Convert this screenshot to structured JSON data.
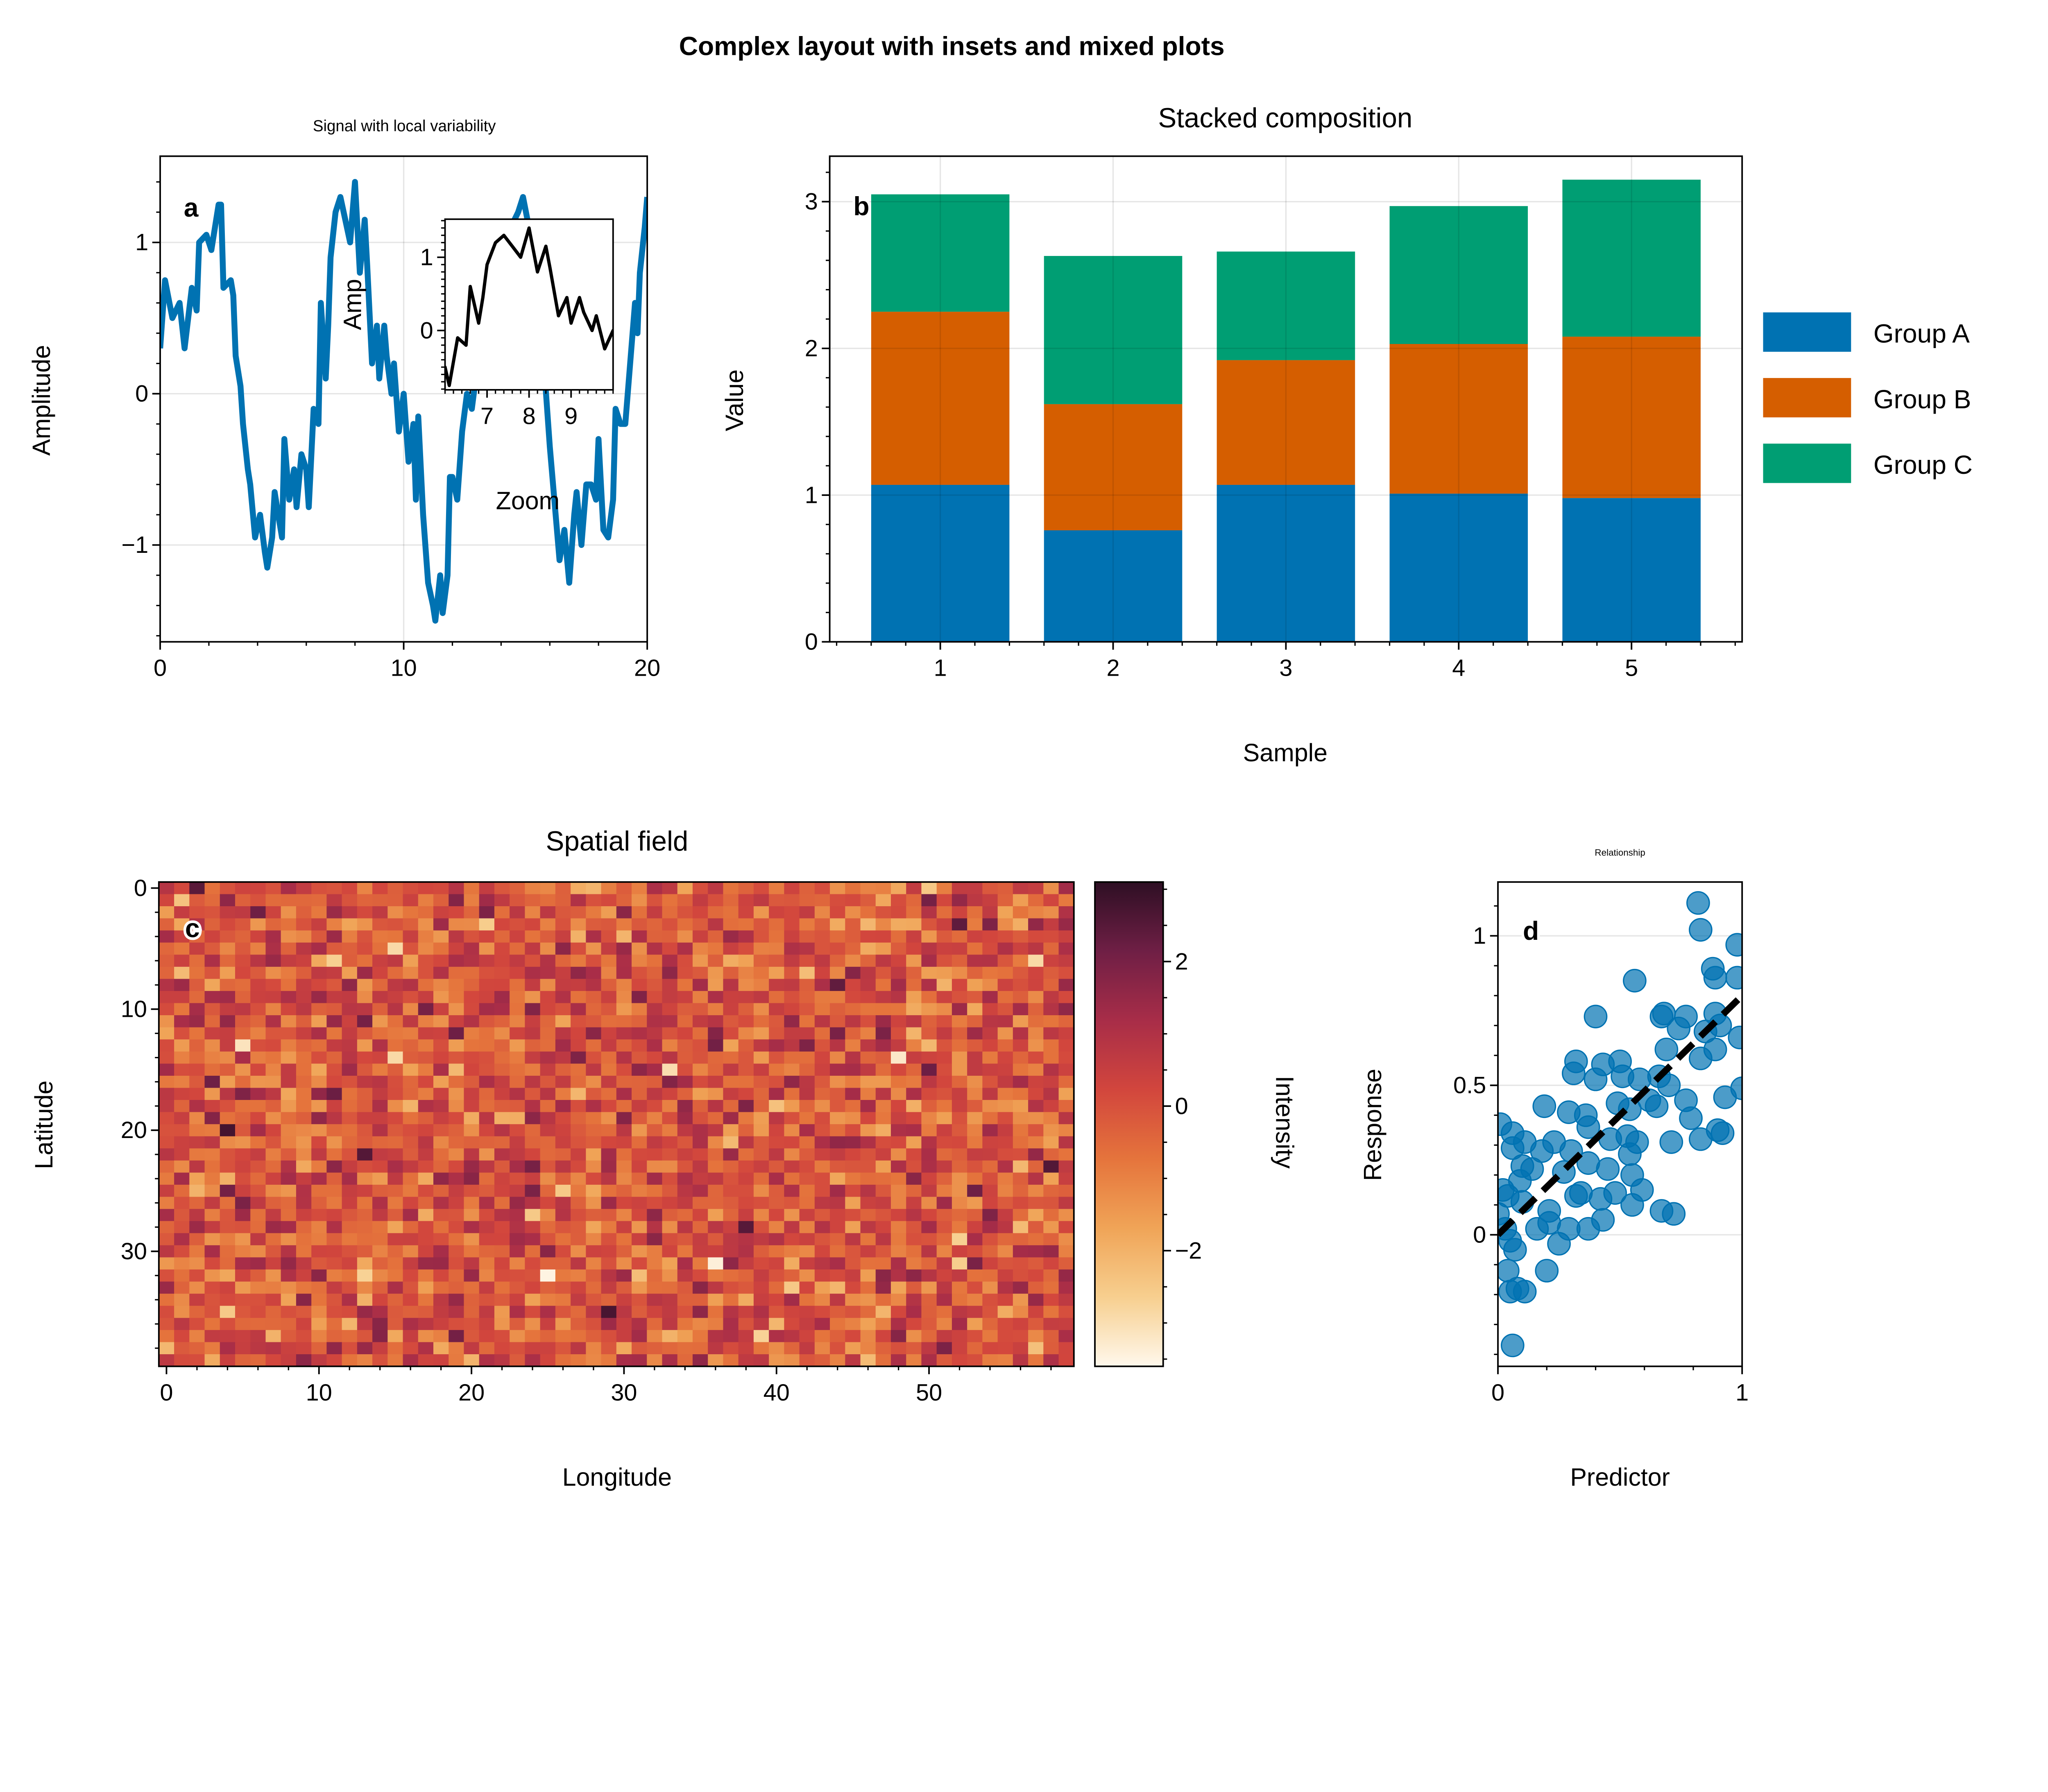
{
  "figure_title": "Complex layout with insets and mixed plots",
  "chart_data": [
    {
      "panel": "a",
      "type": "line",
      "title": "Signal with local variability",
      "xlabel": "",
      "ylabel": "Amplitude",
      "xlim": [
        0,
        20
      ],
      "ylim": [
        -1.64,
        1.57
      ],
      "xticks": [
        0,
        10,
        20
      ],
      "yticks": [
        -1,
        0,
        1
      ],
      "grid": true,
      "color": "#0072b2",
      "x": [
        0,
        0.2,
        0.5,
        0.8,
        1.0,
        1.3,
        1.5,
        1.6,
        1.9,
        2.1,
        2.4,
        2.5,
        2.6,
        2.9,
        3.0,
        3.1,
        3.3,
        3.4,
        3.6,
        3.7,
        3.9,
        4.1,
        4.3,
        4.4,
        4.6,
        4.7,
        4.9,
        5.0,
        5.1,
        5.3,
        5.5,
        5.6,
        5.8,
        6.0,
        6.1,
        6.3,
        6.5,
        6.6,
        6.8,
        6.9,
        7.0,
        7.2,
        7.4,
        7.6,
        7.8,
        8.0,
        8.2,
        8.4,
        8.5,
        8.7,
        8.9,
        9.0,
        9.2,
        9.3,
        9.5,
        9.6,
        9.8,
        10.0,
        10.2,
        10.4,
        10.5,
        10.6,
        10.8,
        11.0,
        11.2,
        11.3,
        11.5,
        11.6,
        11.8,
        11.9,
        12.0,
        12.2,
        12.4,
        12.6,
        12.8,
        13.0,
        13.2,
        13.5,
        14.0,
        14.4,
        14.7,
        14.9,
        15.2,
        15.5,
        15.8,
        16.0,
        16.4,
        16.6,
        16.8,
        17.0,
        17.1,
        17.3,
        17.5,
        17.7,
        17.9,
        18.0,
        18.2,
        18.4,
        18.6,
        18.7,
        18.9,
        19.1,
        19.3,
        19.5,
        19.6,
        19.7,
        19.9,
        20.0
      ],
      "y": [
        0.3,
        0.75,
        0.5,
        0.6,
        0.3,
        0.7,
        0.55,
        1.0,
        1.05,
        0.95,
        1.25,
        1.25,
        0.7,
        0.75,
        0.65,
        0.25,
        0.05,
        -0.2,
        -0.5,
        -0.6,
        -0.95,
        -0.8,
        -1.05,
        -1.15,
        -0.95,
        -0.65,
        -0.85,
        -0.95,
        -0.3,
        -0.7,
        -0.5,
        -0.75,
        -0.4,
        -0.5,
        -0.75,
        -0.1,
        -0.2,
        0.6,
        0.1,
        0.45,
        0.9,
        1.2,
        1.3,
        1.15,
        1.0,
        1.4,
        0.8,
        1.15,
        0.85,
        0.2,
        0.45,
        0.1,
        0.45,
        0.25,
        0.0,
        0.2,
        -0.25,
        0.0,
        -0.45,
        -0.2,
        -0.7,
        -0.15,
        -0.8,
        -1.25,
        -1.4,
        -1.5,
        -1.2,
        -1.45,
        -1.2,
        -0.55,
        -0.55,
        -0.7,
        -0.25,
        0.0,
        -0.1,
        0.15,
        0.5,
        0.7,
        0.9,
        1.1,
        1.2,
        1.3,
        1.05,
        0.6,
        0.1,
        -0.35,
        -1.1,
        -0.9,
        -1.25,
        -0.8,
        -0.65,
        -1.0,
        -0.6,
        -0.6,
        -0.7,
        -0.3,
        -0.9,
        -0.95,
        -0.7,
        -0.1,
        -0.2,
        -0.2,
        0.2,
        0.6,
        0.4,
        0.8,
        1.1,
        1.3
      ],
      "panel_label": "a",
      "inset": {
        "xlabel": "Zoom",
        "ylabel": "Amp",
        "xlim": [
          6,
          10
        ],
        "ylim": [
          -0.81,
          1.52
        ],
        "xticks": [
          7,
          8,
          9
        ],
        "yticks": [
          0,
          1
        ],
        "color": "#000000"
      }
    },
    {
      "panel": "b",
      "type": "bar",
      "stacked": true,
      "title": "Stacked composition",
      "xlabel": "Sample",
      "ylabel": "Value",
      "categories": [
        1,
        2,
        3,
        4,
        5
      ],
      "xlim": [
        0.36,
        5.64
      ],
      "ylim": [
        0,
        3.31
      ],
      "yticks": [
        0,
        1,
        2,
        3
      ],
      "grid": true,
      "legend": "right",
      "panel_label": "b",
      "series": [
        {
          "name": "Group A",
          "color": "#0072b2",
          "values": [
            1.07,
            0.76,
            1.07,
            1.01,
            0.98
          ]
        },
        {
          "name": "Group B",
          "color": "#d55e00",
          "values": [
            1.18,
            0.86,
            0.85,
            1.02,
            1.1
          ]
        },
        {
          "name": "Group C",
          "color": "#009e73",
          "values": [
            0.8,
            1.01,
            0.74,
            0.94,
            1.07
          ]
        }
      ]
    },
    {
      "panel": "c",
      "type": "heatmap",
      "title": "Spatial field",
      "xlabel": "Longitude",
      "ylabel": "Latitude",
      "shape": [
        40,
        60
      ],
      "xticks": [
        0,
        10,
        20,
        30,
        40,
        50
      ],
      "yticks": [
        0,
        10,
        20,
        30
      ],
      "panel_label": "c",
      "extreme_low_cells": [
        {
          "row": 32,
          "col": 25,
          "value": -3.5
        },
        {
          "row": 31,
          "col": 36,
          "value": -3.4
        }
      ],
      "colorbar": {
        "label": "Intensity",
        "range": [
          -3.6,
          3.1
        ],
        "ticks": [
          -2,
          0,
          2
        ],
        "colors": [
          "#fff8ec",
          "#f7cf8f",
          "#f0a457",
          "#e5743c",
          "#d2463d",
          "#a82d48",
          "#6f1f45",
          "#2e0f24"
        ]
      }
    },
    {
      "panel": "d",
      "type": "scatter",
      "title": "Relationship",
      "xlabel": "Predictor",
      "ylabel": "Response",
      "xlim": [
        0,
        1
      ],
      "ylim": [
        -0.44,
        1.18
      ],
      "xticks": [
        0,
        1
      ],
      "yticks": [
        0,
        0.5,
        1
      ],
      "yticklabels": [
        "0",
        "0.5",
        "1"
      ],
      "grid": true,
      "color": "#0072b2",
      "panel_label": "d",
      "fit_line": {
        "slope": 0.8,
        "intercept": 0,
        "style": "dashed",
        "color": "#000000"
      },
      "points": [
        [
          0.82,
          1.11
        ],
        [
          0.83,
          1.02
        ],
        [
          0.98,
          0.97
        ],
        [
          0.56,
          0.85
        ],
        [
          0.88,
          0.89
        ],
        [
          0.89,
          0.86
        ],
        [
          0.98,
          0.86
        ],
        [
          0.4,
          0.73
        ],
        [
          0.67,
          0.73
        ],
        [
          0.68,
          0.74
        ],
        [
          0.77,
          0.73
        ],
        [
          0.89,
          0.74
        ],
        [
          0.74,
          0.69
        ],
        [
          0.91,
          0.7
        ],
        [
          0.99,
          0.66
        ],
        [
          0.85,
          0.68
        ],
        [
          0.69,
          0.62
        ],
        [
          0.83,
          0.59
        ],
        [
          0.89,
          0.62
        ],
        [
          0.32,
          0.58
        ],
        [
          0.43,
          0.57
        ],
        [
          0.5,
          0.58
        ],
        [
          0.31,
          0.54
        ],
        [
          0.4,
          0.52
        ],
        [
          0.51,
          0.53
        ],
        [
          0.58,
          0.52
        ],
        [
          0.66,
          0.53
        ],
        [
          0.7,
          0.5
        ],
        [
          1.0,
          0.49
        ],
        [
          0.93,
          0.46
        ],
        [
          0.49,
          0.44
        ],
        [
          0.62,
          0.45
        ],
        [
          0.77,
          0.45
        ],
        [
          0.19,
          0.43
        ],
        [
          0.29,
          0.41
        ],
        [
          0.36,
          0.4
        ],
        [
          0.54,
          0.42
        ],
        [
          0.65,
          0.43
        ],
        [
          0.79,
          0.39
        ],
        [
          0.01,
          0.37
        ],
        [
          0.37,
          0.36
        ],
        [
          0.9,
          0.35
        ],
        [
          0.92,
          0.34
        ],
        [
          0.06,
          0.34
        ],
        [
          0.11,
          0.31
        ],
        [
          0.23,
          0.31
        ],
        [
          0.53,
          0.33
        ],
        [
          0.57,
          0.31
        ],
        [
          0.71,
          0.31
        ],
        [
          0.83,
          0.32
        ],
        [
          0.06,
          0.29
        ],
        [
          0.18,
          0.28
        ],
        [
          0.3,
          0.28
        ],
        [
          0.46,
          0.32
        ],
        [
          0.54,
          0.27
        ],
        [
          0.1,
          0.23
        ],
        [
          0.14,
          0.22
        ],
        [
          0.27,
          0.21
        ],
        [
          0.37,
          0.24
        ],
        [
          0.45,
          0.22
        ],
        [
          0.09,
          0.18
        ],
        [
          0.55,
          0.2
        ],
        [
          0.04,
          0.13
        ],
        [
          0.1,
          0.11
        ],
        [
          0.32,
          0.13
        ],
        [
          0.34,
          0.14
        ],
        [
          0.42,
          0.12
        ],
        [
          0.48,
          0.14
        ],
        [
          0.59,
          0.15
        ],
        [
          0.55,
          0.1
        ],
        [
          0.21,
          0.08
        ],
        [
          0.67,
          0.08
        ],
        [
          0.72,
          0.07
        ],
        [
          0.16,
          0.02
        ],
        [
          0.21,
          0.04
        ],
        [
          0.29,
          0.02
        ],
        [
          0.37,
          0.02
        ],
        [
          0.43,
          0.05
        ],
        [
          0.03,
          0.02
        ],
        [
          0.05,
          -0.02
        ],
        [
          0.07,
          -0.05
        ],
        [
          0.25,
          -0.03
        ],
        [
          0.04,
          -0.12
        ],
        [
          0.05,
          -0.19
        ],
        [
          0.08,
          -0.18
        ],
        [
          0.11,
          -0.19
        ],
        [
          0.2,
          -0.12
        ],
        [
          0.06,
          -0.37
        ],
        [
          0.0,
          0.07
        ],
        [
          0.02,
          0.15
        ]
      ]
    }
  ]
}
